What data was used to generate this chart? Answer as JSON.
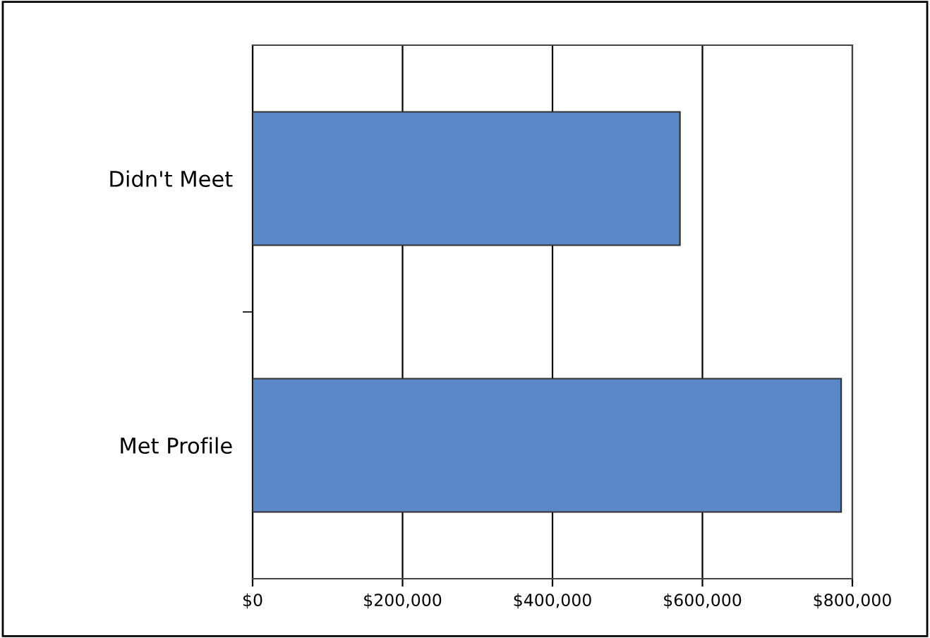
{
  "chart_data": {
    "type": "bar",
    "orientation": "horizontal",
    "categories": [
      "Didn't Meet",
      "Met Profile"
    ],
    "series": [
      {
        "color": "#5b87c6",
        "values": [
          570000,
          785000
        ]
      }
    ],
    "xlim": [
      0,
      800000
    ],
    "xticks": [
      {
        "value": 0,
        "label": "$0"
      },
      {
        "value": 200000,
        "label": "$200,000"
      },
      {
        "value": 400000,
        "label": "$400,000"
      },
      {
        "value": 600000,
        "label": "$600,000"
      },
      {
        "value": 800000,
        "label": "$800,000"
      }
    ],
    "grid": "x",
    "legend": false
  }
}
